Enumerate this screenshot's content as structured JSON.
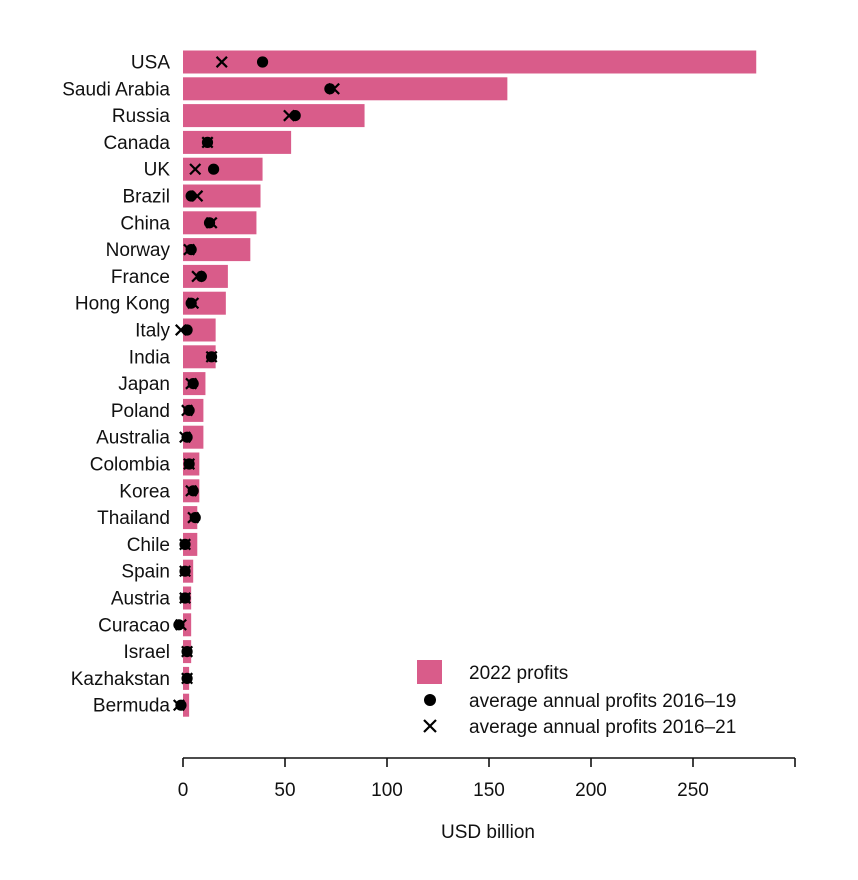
{
  "chart_data": {
    "type": "bar",
    "orientation": "horizontal",
    "title": "",
    "xlabel": "USD billion",
    "ylabel": "",
    "xlim": [
      0,
      300
    ],
    "xticks": [
      0,
      50,
      100,
      150,
      200,
      250
    ],
    "grid": false,
    "legend_position": "bottom-right",
    "categories": [
      "USA",
      "Saudi Arabia",
      "Russia",
      "Canada",
      "UK",
      "Brazil",
      "China",
      "Norway",
      "France",
      "Hong Kong",
      "Italy",
      "India",
      "Japan",
      "Poland",
      "Australia",
      "Colombia",
      "Korea",
      "Thailand",
      "Chile",
      "Spain",
      "Austria",
      "Curacao",
      "Israel",
      "Kazhakstan",
      "Bermuda"
    ],
    "series": [
      {
        "name": "2022 profits",
        "kind": "bar",
        "color": "#d95c8a",
        "values": [
          281,
          159,
          89,
          53,
          39,
          38,
          36,
          33,
          22,
          21,
          16,
          16,
          11,
          10,
          10,
          8,
          8,
          7,
          7,
          5,
          4,
          4,
          4,
          3,
          3
        ]
      },
      {
        "name": "average annual profits 2016–19",
        "kind": "point",
        "marker": "dot",
        "color": "#000000",
        "values": [
          39,
          72,
          55,
          12,
          15,
          4,
          13,
          4,
          9,
          4,
          2,
          14,
          5,
          3,
          2,
          3,
          5,
          6,
          1,
          1,
          1,
          -2,
          2,
          2,
          -1
        ]
      },
      {
        "name": "average annual profits 2016–21",
        "kind": "point",
        "marker": "cross",
        "color": "#000000",
        "values": [
          19,
          74,
          52,
          12,
          6,
          7,
          14,
          3,
          7,
          5,
          -1,
          14,
          4,
          2,
          1,
          3,
          4,
          5,
          1,
          1,
          1,
          -1,
          2,
          2,
          -2
        ]
      }
    ]
  }
}
